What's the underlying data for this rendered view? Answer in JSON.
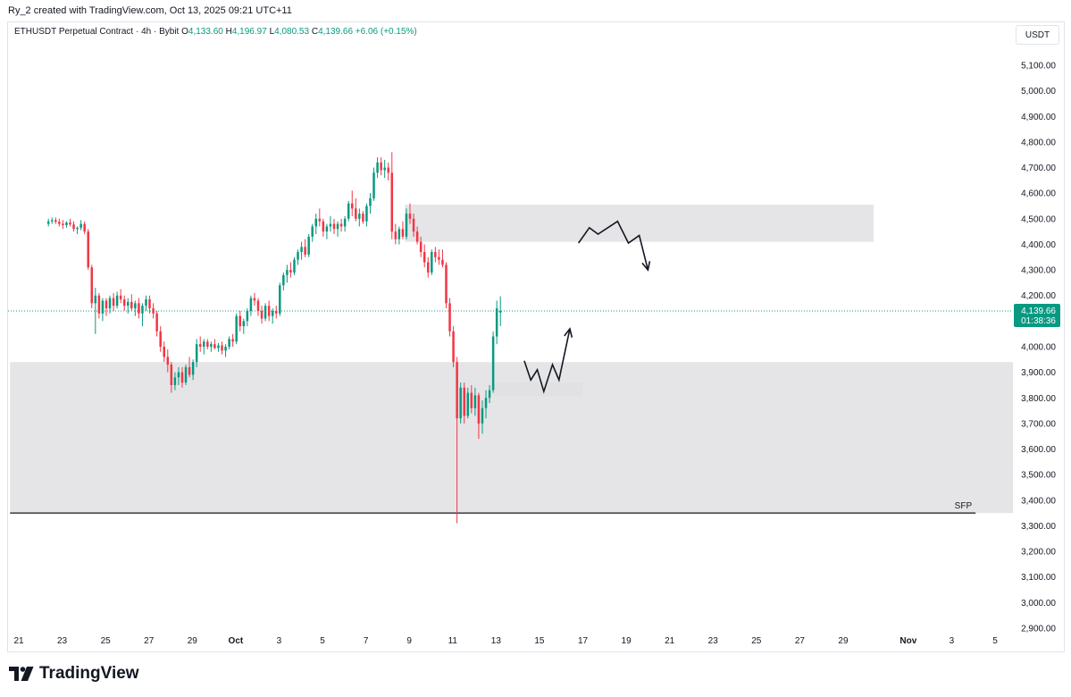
{
  "header": {
    "attribution": "Ry_2 created with TradingView.com, Oct 13, 2025 09:21 UTC+11"
  },
  "legend": {
    "symbol": "ETHUSDT Perpetual Contract · 4h · Bybit",
    "open_key": "O",
    "open": "4,133.60",
    "high_key": "H",
    "high": "4,196.97",
    "low_key": "L",
    "low": "4,080.53",
    "close_key": "C",
    "close": "4,139.66",
    "change": "+6.06 (+0.15%)"
  },
  "currency_button": "USDT",
  "footer": {
    "brand": "TradingView",
    "logo_icon": "tradingview-logo-icon"
  },
  "colors": {
    "up": "#089981",
    "down": "#f23645",
    "zone": "#e0e1e3",
    "price_line": "#089981"
  },
  "chart_data": {
    "type": "candlestick",
    "timeframe": "4h",
    "ylim": [
      2900,
      5150
    ],
    "y_ticks": [
      {
        "value": 5100,
        "label": "5,100.00"
      },
      {
        "value": 5000,
        "label": "5,000.00"
      },
      {
        "value": 4900,
        "label": "4,900.00"
      },
      {
        "value": 4800,
        "label": "4,800.00"
      },
      {
        "value": 4700,
        "label": "4,700.00"
      },
      {
        "value": 4600,
        "label": "4,600.00"
      },
      {
        "value": 4500,
        "label": "4,500.00"
      },
      {
        "value": 4400,
        "label": "4,400.00"
      },
      {
        "value": 4300,
        "label": "4,300.00"
      },
      {
        "value": 4200,
        "label": "4,200.00"
      },
      {
        "value": 4000,
        "label": "4,000.00"
      },
      {
        "value": 3900,
        "label": "3,900.00"
      },
      {
        "value": 3800,
        "label": "3,800.00"
      },
      {
        "value": 3700,
        "label": "3,700.00"
      },
      {
        "value": 3600,
        "label": "3,600.00"
      },
      {
        "value": 3500,
        "label": "3,500.00"
      },
      {
        "value": 3400,
        "label": "3,400.00"
      },
      {
        "value": 3300,
        "label": "3,300.00"
      },
      {
        "value": 3200,
        "label": "3,200.00"
      },
      {
        "value": 3100,
        "label": "3,100.00"
      },
      {
        "value": 3000,
        "label": "3,000.00"
      },
      {
        "value": 2900,
        "label": "2,900.00"
      }
    ],
    "x_ticks": [
      {
        "day": 21,
        "label": "21"
      },
      {
        "day": 23,
        "label": "23"
      },
      {
        "day": 25,
        "label": "25"
      },
      {
        "day": 27,
        "label": "27"
      },
      {
        "day": 29,
        "label": "29"
      },
      {
        "day": 31,
        "label": "Oct"
      },
      {
        "day": 33,
        "label": "3"
      },
      {
        "day": 35,
        "label": "5"
      },
      {
        "day": 37,
        "label": "7"
      },
      {
        "day": 39,
        "label": "9"
      },
      {
        "day": 41,
        "label": "11"
      },
      {
        "day": 43,
        "label": "13"
      },
      {
        "day": 45,
        "label": "15"
      },
      {
        "day": 47,
        "label": "17"
      },
      {
        "day": 49,
        "label": "19"
      },
      {
        "day": 51,
        "label": "21"
      },
      {
        "day": 53,
        "label": "23"
      },
      {
        "day": 55,
        "label": "25"
      },
      {
        "day": 57,
        "label": "27"
      },
      {
        "day": 59,
        "label": "29"
      },
      {
        "day": 62,
        "label": "Nov"
      },
      {
        "day": 64,
        "label": "3"
      },
      {
        "day": 66,
        "label": "5"
      }
    ],
    "x_range": [
      20.6,
      67.7
    ],
    "last_price": {
      "value": 4139.66,
      "label": "4,139.66",
      "countdown": "01:38:36"
    },
    "zones": [
      {
        "x0": 20.6,
        "x1": 67.6,
        "y0": 3350,
        "y1": 3940
      },
      {
        "x0": 38.8,
        "x1": 60.4,
        "y0": 4410,
        "y1": 4555
      },
      {
        "x0": 42.9,
        "x1": 47.0,
        "y0": 3805,
        "y1": 3860
      }
    ],
    "sfp_line": {
      "x0": 20.6,
      "x1": 65.1,
      "y": 3350,
      "label": "SFP"
    },
    "projections": [
      {
        "points": [
          [
            46.8,
            4405
          ],
          [
            47.3,
            4465
          ],
          [
            47.7,
            4440
          ],
          [
            48.6,
            4490
          ],
          [
            49.1,
            4405
          ],
          [
            49.6,
            4435
          ],
          [
            50.0,
            4300
          ]
        ]
      },
      {
        "points": [
          [
            44.3,
            3945
          ],
          [
            44.6,
            3870
          ],
          [
            44.9,
            3910
          ],
          [
            45.2,
            3825
          ],
          [
            45.6,
            3930
          ],
          [
            45.9,
            3870
          ],
          [
            46.4,
            4070
          ]
        ]
      }
    ],
    "candles": [
      {
        "o": 4480,
        "h": 4500,
        "l": 4470,
        "c": 4490
      },
      {
        "o": 4490,
        "h": 4505,
        "l": 4480,
        "c": 4495
      },
      {
        "o": 4495,
        "h": 4505,
        "l": 4480,
        "c": 4488
      },
      {
        "o": 4488,
        "h": 4500,
        "l": 4470,
        "c": 4480
      },
      {
        "o": 4480,
        "h": 4495,
        "l": 4460,
        "c": 4475
      },
      {
        "o": 4475,
        "h": 4490,
        "l": 4465,
        "c": 4485
      },
      {
        "o": 4485,
        "h": 4500,
        "l": 4470,
        "c": 4478
      },
      {
        "o": 4478,
        "h": 4490,
        "l": 4450,
        "c": 4460
      },
      {
        "o": 4460,
        "h": 4470,
        "l": 4440,
        "c": 4465
      },
      {
        "o": 4465,
        "h": 4495,
        "l": 4455,
        "c": 4480
      },
      {
        "o": 4480,
        "h": 4490,
        "l": 4440,
        "c": 4450
      },
      {
        "o": 4450,
        "h": 4460,
        "l": 4300,
        "c": 4310
      },
      {
        "o": 4310,
        "h": 4320,
        "l": 4150,
        "c": 4170
      },
      {
        "o": 4170,
        "h": 4230,
        "l": 4050,
        "c": 4200
      },
      {
        "o": 4200,
        "h": 4210,
        "l": 4110,
        "c": 4130
      },
      {
        "o": 4130,
        "h": 4190,
        "l": 4100,
        "c": 4180
      },
      {
        "o": 4180,
        "h": 4190,
        "l": 4120,
        "c": 4150
      },
      {
        "o": 4150,
        "h": 4200,
        "l": 4130,
        "c": 4190
      },
      {
        "o": 4190,
        "h": 4210,
        "l": 4140,
        "c": 4160
      },
      {
        "o": 4160,
        "h": 4215,
        "l": 4150,
        "c": 4200
      },
      {
        "o": 4200,
        "h": 4225,
        "l": 4170,
        "c": 4185
      },
      {
        "o": 4185,
        "h": 4200,
        "l": 4140,
        "c": 4160
      },
      {
        "o": 4160,
        "h": 4190,
        "l": 4130,
        "c": 4175
      },
      {
        "o": 4175,
        "h": 4205,
        "l": 4140,
        "c": 4150
      },
      {
        "o": 4150,
        "h": 4180,
        "l": 4120,
        "c": 4170
      },
      {
        "o": 4170,
        "h": 4190,
        "l": 4110,
        "c": 4130
      },
      {
        "o": 4130,
        "h": 4170,
        "l": 4080,
        "c": 4160
      },
      {
        "o": 4160,
        "h": 4200,
        "l": 4140,
        "c": 4185
      },
      {
        "o": 4185,
        "h": 4200,
        "l": 4130,
        "c": 4150
      },
      {
        "o": 4150,
        "h": 4170,
        "l": 4110,
        "c": 4130
      },
      {
        "o": 4130,
        "h": 4140,
        "l": 4040,
        "c": 4060
      },
      {
        "o": 4060,
        "h": 4080,
        "l": 3980,
        "c": 4000
      },
      {
        "o": 4000,
        "h": 4020,
        "l": 3940,
        "c": 3960
      },
      {
        "o": 3960,
        "h": 3990,
        "l": 3900,
        "c": 3930
      },
      {
        "o": 3930,
        "h": 3940,
        "l": 3820,
        "c": 3850
      },
      {
        "o": 3850,
        "h": 3900,
        "l": 3830,
        "c": 3880
      },
      {
        "o": 3880,
        "h": 3920,
        "l": 3850,
        "c": 3900
      },
      {
        "o": 3900,
        "h": 3920,
        "l": 3840,
        "c": 3860
      },
      {
        "o": 3860,
        "h": 3930,
        "l": 3850,
        "c": 3920
      },
      {
        "o": 3920,
        "h": 3960,
        "l": 3880,
        "c": 3890
      },
      {
        "o": 3890,
        "h": 3950,
        "l": 3870,
        "c": 3940
      },
      {
        "o": 3940,
        "h": 4030,
        "l": 3920,
        "c": 4010
      },
      {
        "o": 4010,
        "h": 4040,
        "l": 3980,
        "c": 4000
      },
      {
        "o": 4000,
        "h": 4030,
        "l": 3970,
        "c": 4020
      },
      {
        "o": 4020,
        "h": 4030,
        "l": 3990,
        "c": 4000
      },
      {
        "o": 4000,
        "h": 4020,
        "l": 3980,
        "c": 4010
      },
      {
        "o": 4010,
        "h": 4030,
        "l": 3990,
        "c": 3995
      },
      {
        "o": 3995,
        "h": 4015,
        "l": 3980,
        "c": 4005
      },
      {
        "o": 4005,
        "h": 4020,
        "l": 3970,
        "c": 3985
      },
      {
        "o": 3985,
        "h": 4010,
        "l": 3960,
        "c": 4000
      },
      {
        "o": 4000,
        "h": 4040,
        "l": 3990,
        "c": 4030
      },
      {
        "o": 4030,
        "h": 4050,
        "l": 4000,
        "c": 4020
      },
      {
        "o": 4020,
        "h": 4130,
        "l": 4010,
        "c": 4120
      },
      {
        "o": 4120,
        "h": 4140,
        "l": 4060,
        "c": 4080
      },
      {
        "o": 4080,
        "h": 4110,
        "l": 4050,
        "c": 4100
      },
      {
        "o": 4100,
        "h": 4150,
        "l": 4080,
        "c": 4140
      },
      {
        "o": 4140,
        "h": 4200,
        "l": 4120,
        "c": 4190
      },
      {
        "o": 4190,
        "h": 4210,
        "l": 4160,
        "c": 4180
      },
      {
        "o": 4180,
        "h": 4190,
        "l": 4120,
        "c": 4140
      },
      {
        "o": 4140,
        "h": 4160,
        "l": 4090,
        "c": 4110
      },
      {
        "o": 4110,
        "h": 4170,
        "l": 4100,
        "c": 4160
      },
      {
        "o": 4160,
        "h": 4180,
        "l": 4100,
        "c": 4120
      },
      {
        "o": 4120,
        "h": 4150,
        "l": 4090,
        "c": 4140
      },
      {
        "o": 4140,
        "h": 4160,
        "l": 4110,
        "c": 4130
      },
      {
        "o": 4130,
        "h": 4250,
        "l": 4120,
        "c": 4240
      },
      {
        "o": 4240,
        "h": 4290,
        "l": 4220,
        "c": 4280
      },
      {
        "o": 4280,
        "h": 4320,
        "l": 4250,
        "c": 4300
      },
      {
        "o": 4300,
        "h": 4330,
        "l": 4270,
        "c": 4290
      },
      {
        "o": 4290,
        "h": 4350,
        "l": 4280,
        "c": 4340
      },
      {
        "o": 4340,
        "h": 4380,
        "l": 4320,
        "c": 4370
      },
      {
        "o": 4370,
        "h": 4410,
        "l": 4340,
        "c": 4390
      },
      {
        "o": 4390,
        "h": 4420,
        "l": 4350,
        "c": 4360
      },
      {
        "o": 4360,
        "h": 4440,
        "l": 4350,
        "c": 4430
      },
      {
        "o": 4430,
        "h": 4480,
        "l": 4410,
        "c": 4470
      },
      {
        "o": 4470,
        "h": 4520,
        "l": 4440,
        "c": 4500
      },
      {
        "o": 4500,
        "h": 4540,
        "l": 4470,
        "c": 4490
      },
      {
        "o": 4490,
        "h": 4500,
        "l": 4430,
        "c": 4450
      },
      {
        "o": 4450,
        "h": 4480,
        "l": 4420,
        "c": 4470
      },
      {
        "o": 4470,
        "h": 4510,
        "l": 4450,
        "c": 4480
      },
      {
        "o": 4480,
        "h": 4500,
        "l": 4440,
        "c": 4460
      },
      {
        "o": 4460,
        "h": 4490,
        "l": 4430,
        "c": 4480
      },
      {
        "o": 4480,
        "h": 4500,
        "l": 4450,
        "c": 4470
      },
      {
        "o": 4470,
        "h": 4510,
        "l": 4450,
        "c": 4500
      },
      {
        "o": 4500,
        "h": 4570,
        "l": 4490,
        "c": 4560
      },
      {
        "o": 4560,
        "h": 4610,
        "l": 4510,
        "c": 4540
      },
      {
        "o": 4540,
        "h": 4580,
        "l": 4490,
        "c": 4500
      },
      {
        "o": 4500,
        "h": 4540,
        "l": 4470,
        "c": 4520
      },
      {
        "o": 4520,
        "h": 4530,
        "l": 4480,
        "c": 4490
      },
      {
        "o": 4490,
        "h": 4560,
        "l": 4470,
        "c": 4550
      },
      {
        "o": 4550,
        "h": 4600,
        "l": 4520,
        "c": 4580
      },
      {
        "o": 4580,
        "h": 4700,
        "l": 4570,
        "c": 4680
      },
      {
        "o": 4680,
        "h": 4740,
        "l": 4660,
        "c": 4720
      },
      {
        "o": 4720,
        "h": 4740,
        "l": 4670,
        "c": 4690
      },
      {
        "o": 4690,
        "h": 4730,
        "l": 4660,
        "c": 4700
      },
      {
        "o": 4700,
        "h": 4720,
        "l": 4650,
        "c": 4680
      },
      {
        "o": 4680,
        "h": 4760,
        "l": 4420,
        "c": 4450
      },
      {
        "o": 4450,
        "h": 4480,
        "l": 4400,
        "c": 4420
      },
      {
        "o": 4420,
        "h": 4470,
        "l": 4400,
        "c": 4460
      },
      {
        "o": 4460,
        "h": 4490,
        "l": 4420,
        "c": 4430
      },
      {
        "o": 4430,
        "h": 4540,
        "l": 4420,
        "c": 4520
      },
      {
        "o": 4520,
        "h": 4560,
        "l": 4480,
        "c": 4500
      },
      {
        "o": 4500,
        "h": 4520,
        "l": 4430,
        "c": 4450
      },
      {
        "o": 4450,
        "h": 4470,
        "l": 4400,
        "c": 4410
      },
      {
        "o": 4410,
        "h": 4430,
        "l": 4350,
        "c": 4370
      },
      {
        "o": 4370,
        "h": 4400,
        "l": 4310,
        "c": 4330
      },
      {
        "o": 4330,
        "h": 4350,
        "l": 4270,
        "c": 4290
      },
      {
        "o": 4290,
        "h": 4380,
        "l": 4280,
        "c": 4370
      },
      {
        "o": 4370,
        "h": 4390,
        "l": 4330,
        "c": 4350
      },
      {
        "o": 4350,
        "h": 4380,
        "l": 4320,
        "c": 4340
      },
      {
        "o": 4340,
        "h": 4380,
        "l": 4310,
        "c": 4320
      },
      {
        "o": 4320,
        "h": 4330,
        "l": 4150,
        "c": 4170
      },
      {
        "o": 4170,
        "h": 4190,
        "l": 4040,
        "c": 4060
      },
      {
        "o": 4060,
        "h": 4080,
        "l": 3920,
        "c": 3940
      },
      {
        "o": 3940,
        "h": 3960,
        "l": 3310,
        "c": 3720
      },
      {
        "o": 3720,
        "h": 3860,
        "l": 3700,
        "c": 3840
      },
      {
        "o": 3840,
        "h": 3860,
        "l": 3700,
        "c": 3730
      },
      {
        "o": 3730,
        "h": 3840,
        "l": 3720,
        "c": 3820
      },
      {
        "o": 3820,
        "h": 3850,
        "l": 3740,
        "c": 3760
      },
      {
        "o": 3760,
        "h": 3840,
        "l": 3730,
        "c": 3810
      },
      {
        "o": 3810,
        "h": 3820,
        "l": 3640,
        "c": 3700
      },
      {
        "o": 3700,
        "h": 3790,
        "l": 3660,
        "c": 3760
      },
      {
        "o": 3760,
        "h": 3830,
        "l": 3720,
        "c": 3800
      },
      {
        "o": 3800,
        "h": 3850,
        "l": 3780,
        "c": 3830
      },
      {
        "o": 3830,
        "h": 4060,
        "l": 3820,
        "c": 4040
      },
      {
        "o": 4040,
        "h": 4180,
        "l": 4010,
        "c": 4150
      },
      {
        "o": 4133.6,
        "h": 4196.97,
        "l": 4080.53,
        "c": 4139.66
      }
    ]
  }
}
